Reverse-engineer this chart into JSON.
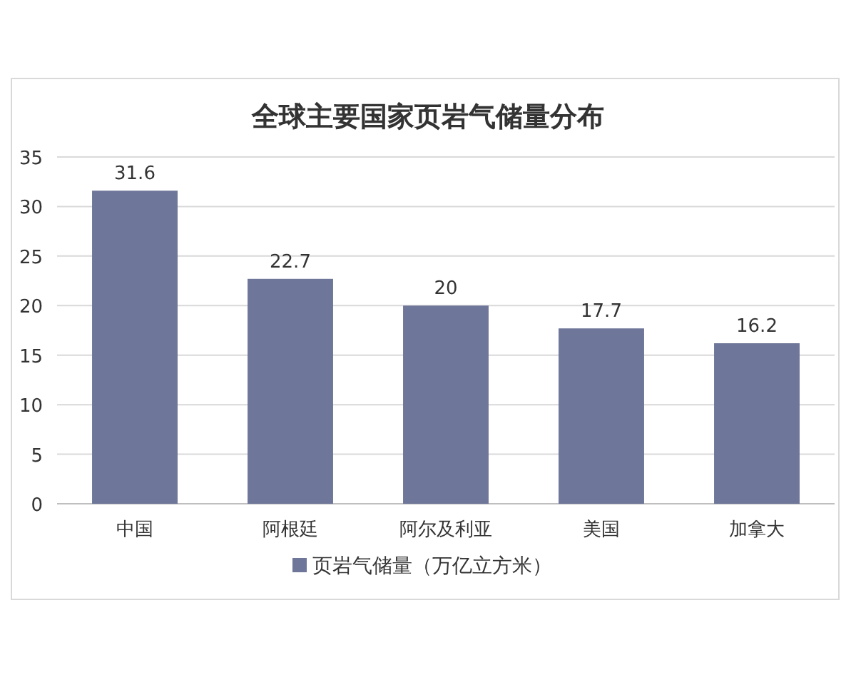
{
  "chart_data": {
    "type": "bar",
    "title": "全球主要国家页岩气储量分布",
    "categories": [
      "中国",
      "阿根廷",
      "阿尔及利亚",
      "美国",
      "加拿大"
    ],
    "series": [
      {
        "name": "页岩气储量（万亿立方米）",
        "color": "#6e7699",
        "values": [
          31.6,
          22.7,
          20,
          17.7,
          16.2
        ]
      }
    ],
    "ylim": [
      0,
      35
    ],
    "yticks": [
      0,
      5,
      10,
      15,
      20,
      25,
      30,
      35
    ],
    "grid": "y",
    "legend": "bottom",
    "data_labels": true
  }
}
